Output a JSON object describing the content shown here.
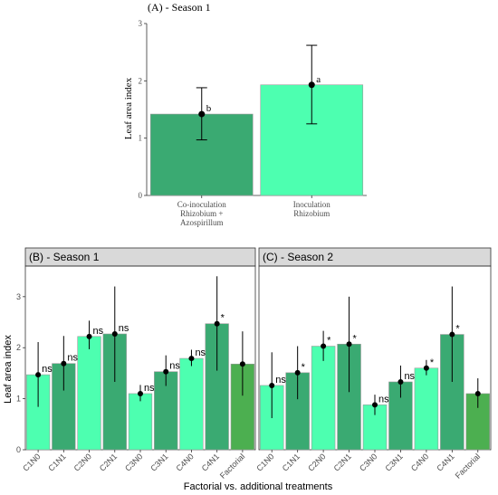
{
  "colors": {
    "light_green": "#4dffb0",
    "dark_green": "#3aaa72",
    "factorial_green": "#4caf50",
    "bar_stroke": "#999999",
    "panel_header_bg": "#d9d9d9"
  },
  "chart_data": [
    {
      "id": "A",
      "type": "bar",
      "title": "(A) - Season 1",
      "ylabel": "Leaf area index",
      "xlabel": "",
      "ylim": [
        0,
        3
      ],
      "yticks": [
        0,
        1,
        2,
        3
      ],
      "grid": false,
      "categories": [
        "Co-inoculation\nRhizobium +\nAzospirillum",
        "Inoculation\nRhizobium"
      ],
      "values": [
        1.42,
        1.93
      ],
      "err_low": [
        0.97,
        1.25
      ],
      "err_high": [
        1.88,
        2.62
      ],
      "labels": [
        "b",
        "a"
      ],
      "bar_colors": [
        "dark_green",
        "light_green"
      ]
    },
    {
      "id": "B",
      "type": "bar",
      "title": "(B) - Season 1",
      "ylabel": "Leaf area index",
      "xlabel": "Factorial vs. additional treatments",
      "ylim": [
        0,
        3.6
      ],
      "yticks": [
        0,
        1,
        2,
        3
      ],
      "grid": false,
      "categories": [
        "C1N0",
        "C1N1",
        "C2N0",
        "C2N1",
        "C3N0",
        "C3N1",
        "C4N0",
        "C4N1",
        "Factorial"
      ],
      "values": [
        1.47,
        1.69,
        2.22,
        2.27,
        1.1,
        1.53,
        1.79,
        2.47,
        1.68
      ],
      "err_low": [
        0.84,
        1.16,
        1.97,
        1.33,
        0.95,
        1.25,
        1.64,
        1.55,
        1.06
      ],
      "err_high": [
        2.11,
        2.23,
        2.53,
        3.2,
        1.27,
        1.85,
        1.96,
        3.4,
        2.32
      ],
      "labels": [
        "ns",
        "ns",
        "ns",
        "ns",
        "ns",
        "ns",
        "ns",
        "*",
        ""
      ],
      "bar_colors": [
        "light_green",
        "dark_green",
        "light_green",
        "dark_green",
        "light_green",
        "dark_green",
        "light_green",
        "dark_green",
        "factorial_green"
      ]
    },
    {
      "id": "C",
      "type": "bar",
      "title": "(C) - Season 2",
      "ylabel": "Leaf area index",
      "xlabel": "Factorial vs. additional treatments",
      "ylim": [
        0,
        3.6
      ],
      "yticks": [
        0,
        1,
        2,
        3
      ],
      "grid": false,
      "categories": [
        "C1N0",
        "C1N1",
        "C2N0",
        "C2N1",
        "C3N0",
        "C3N1",
        "C4N0",
        "C4N1",
        "Factorial"
      ],
      "values": [
        1.26,
        1.51,
        2.03,
        2.07,
        0.88,
        1.33,
        1.6,
        2.26,
        1.1
      ],
      "err_low": [
        0.62,
        0.99,
        1.74,
        1.13,
        0.68,
        1.02,
        1.46,
        1.33,
        0.82
      ],
      "err_high": [
        1.91,
        2.03,
        2.33,
        3.0,
        1.08,
        1.65,
        1.76,
        3.2,
        1.4
      ],
      "labels": [
        "ns",
        "*",
        "*",
        "*",
        "ns",
        "ns",
        "*",
        "*",
        ""
      ],
      "bar_colors": [
        "light_green",
        "dark_green",
        "light_green",
        "dark_green",
        "light_green",
        "dark_green",
        "light_green",
        "dark_green",
        "factorial_green"
      ]
    }
  ],
  "shared": {
    "x_axis_title": "Factorial vs. additional treatments"
  }
}
